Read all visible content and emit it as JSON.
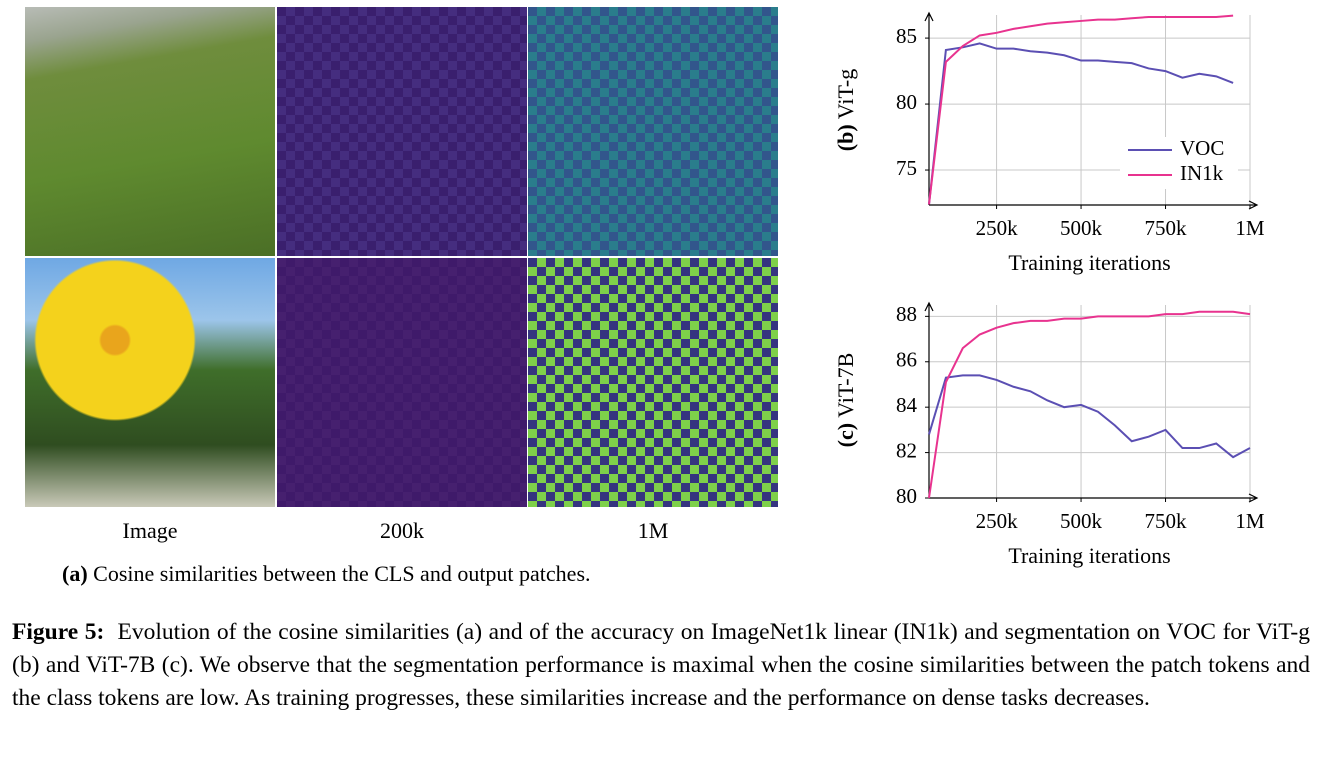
{
  "panel_a": {
    "column_labels": [
      "Image",
      "200k",
      "1M"
    ],
    "caption_tag": "(a)",
    "caption": "Cosine similarities between the CLS and output patches."
  },
  "chart_data": [
    {
      "type": "line",
      "y_label_tag": "(b)",
      "y_label": "ViT-g",
      "x_label": "Training iterations",
      "x": [
        50000,
        100000,
        150000,
        200000,
        250000,
        300000,
        350000,
        400000,
        450000,
        500000,
        550000,
        600000,
        650000,
        700000,
        750000,
        800000,
        850000,
        900000,
        950000
      ],
      "series": [
        {
          "name": "VOC",
          "color": "#5b4fb3",
          "values": [
            72.4,
            84.1,
            84.3,
            84.6,
            84.2,
            84.2,
            84.0,
            83.9,
            83.7,
            83.3,
            83.3,
            83.2,
            83.1,
            82.7,
            82.5,
            82.0,
            82.3,
            82.1,
            81.6
          ]
        },
        {
          "name": "IN1k",
          "color": "#e8338f",
          "values": [
            72.4,
            83.2,
            84.4,
            85.2,
            85.4,
            85.7,
            85.9,
            86.1,
            86.2,
            86.3,
            86.4,
            86.4,
            86.5,
            86.6,
            86.6,
            86.6,
            86.6,
            86.6,
            86.7
          ]
        }
      ],
      "xlim": [
        50000,
        1000000
      ],
      "xticks": [
        {
          "value": 250000,
          "label": "250k"
        },
        {
          "value": 500000,
          "label": "500k"
        },
        {
          "value": 750000,
          "label": "750k"
        },
        {
          "value": 1000000,
          "label": "1M"
        }
      ],
      "ylim": [
        72.35,
        86.75
      ],
      "yticks": [
        75,
        80,
        85
      ],
      "grid": true,
      "legend": "lower right"
    },
    {
      "type": "line",
      "y_label_tag": "(c)",
      "y_label": "ViT-7B",
      "x_label": "Training iterations",
      "x": [
        50000,
        100000,
        150000,
        200000,
        250000,
        300000,
        350000,
        400000,
        450000,
        500000,
        550000,
        600000,
        650000,
        700000,
        750000,
        800000,
        850000,
        900000,
        950000,
        1000000
      ],
      "series": [
        {
          "name": "VOC",
          "color": "#5b4fb3",
          "values": [
            82.8,
            85.3,
            85.4,
            85.4,
            85.2,
            84.9,
            84.7,
            84.3,
            84.0,
            84.1,
            83.8,
            83.2,
            82.5,
            82.7,
            83.0,
            82.2,
            82.2,
            82.4,
            81.8,
            82.2
          ]
        },
        {
          "name": "IN1k",
          "color": "#e8338f",
          "values": [
            80.0,
            85.1,
            86.6,
            87.2,
            87.5,
            87.7,
            87.8,
            87.8,
            87.9,
            87.9,
            88.0,
            88.0,
            88.0,
            88.0,
            88.1,
            88.1,
            88.2,
            88.2,
            88.2,
            88.1
          ]
        }
      ],
      "xlim": [
        50000,
        1000000
      ],
      "xticks": [
        {
          "value": 250000,
          "label": "250k"
        },
        {
          "value": 500000,
          "label": "500k"
        },
        {
          "value": 750000,
          "label": "750k"
        },
        {
          "value": 1000000,
          "label": "1M"
        }
      ],
      "ylim": [
        80,
        88.5
      ],
      "yticks": [
        80,
        82,
        84,
        86,
        88
      ],
      "grid": true,
      "legend": "none"
    }
  ],
  "figure_caption": {
    "label": "Figure 5:",
    "text": "Evolution of the cosine similarities (a) and of the accuracy on ImageNet1k linear (IN1k) and segmentation on VOC for ViT-g (b) and ViT-7B (c). We observe that the segmentation performance is maximal when the cosine similarities between the patch tokens and the class tokens are low. As training progresses, these similarities increase and the performance on dense tasks decreases."
  }
}
